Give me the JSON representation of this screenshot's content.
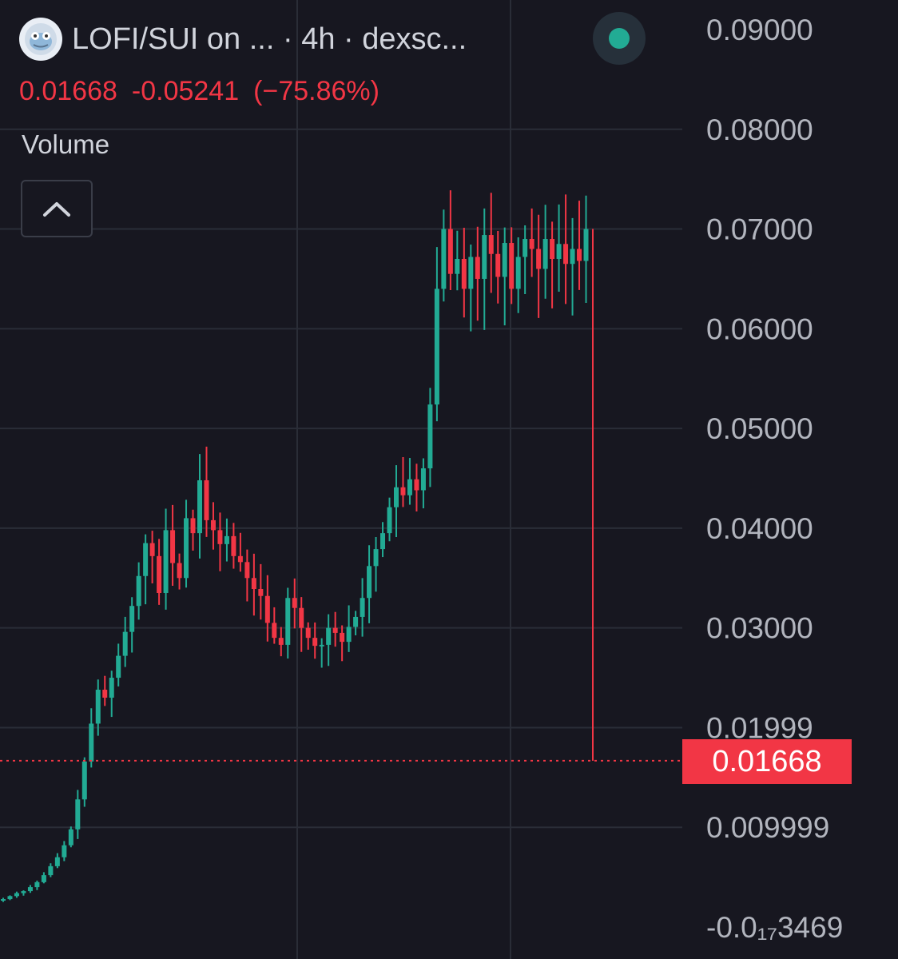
{
  "header": {
    "symbol": "LOFI/SUI on ...  · 4h · dexsc...",
    "logo_icon": "frog-token-icon",
    "status_color": "#22ab94"
  },
  "ohlc": {
    "price": "0.01668",
    "change": "-0.05241",
    "change_pct": "(−75.86%)"
  },
  "volume": {
    "label": "Volume",
    "toggle_icon": "chevron-up-icon"
  },
  "price_tag": "0.01668",
  "colors": {
    "background": "#171720",
    "up": "#22ab94",
    "down": "#f23645",
    "grid": "#2a2d37"
  },
  "chart_data": {
    "type": "candlestick",
    "symbol": "LOFI/SUI",
    "interval": "4h",
    "y_tick_labels": [
      "0.09000",
      "0.08000",
      "0.07000",
      "0.06000",
      "0.05000",
      "0.04000",
      "0.03000",
      "0.01999",
      "0.009999",
      "-0.0₁₇3469"
    ],
    "y_ticks": [
      0.09,
      0.08,
      0.07,
      0.06,
      0.05,
      0.04,
      0.03,
      0.02,
      0.01,
      0
    ],
    "ylim": [
      0,
      0.09
    ],
    "last_price": 0.01668,
    "change": -0.05241,
    "change_pct": -75.86,
    "grid": true,
    "close_series_approx": [
      0.0028,
      0.0031,
      0.0034,
      0.0036,
      0.004,
      0.0045,
      0.0052,
      0.0061,
      0.007,
      0.0082,
      0.0098,
      0.0128,
      0.0166,
      0.0204,
      0.0238,
      0.023,
      0.025,
      0.0272,
      0.0296,
      0.0322,
      0.0352,
      0.0385,
      0.0372,
      0.0335,
      0.0398,
      0.0365,
      0.035,
      0.041,
      0.0395,
      0.0448,
      0.0408,
      0.0398,
      0.0384,
      0.0392,
      0.0372,
      0.0366,
      0.035,
      0.0339,
      0.0332,
      0.0305,
      0.029,
      0.0283,
      0.033,
      0.032,
      0.03,
      0.029,
      0.0282,
      0.0283,
      0.03,
      0.0295,
      0.0286,
      0.0301,
      0.0311,
      0.033,
      0.0362,
      0.0379,
      0.0395,
      0.0421,
      0.0441,
      0.0433,
      0.0449,
      0.0438,
      0.046,
      0.0524,
      0.064,
      0.07,
      0.0655,
      0.067,
      0.064,
      0.0672,
      0.065,
      0.0694,
      0.0675,
      0.0652,
      0.0686,
      0.064,
      0.0672,
      0.069,
      0.068,
      0.066,
      0.069,
      0.067,
      0.0685,
      0.0665,
      0.068,
      0.0668,
      0.07
    ],
    "final_candle": {
      "open": 0.069,
      "high": 0.07,
      "low": 0.01668,
      "close": 0.01668
    }
  }
}
